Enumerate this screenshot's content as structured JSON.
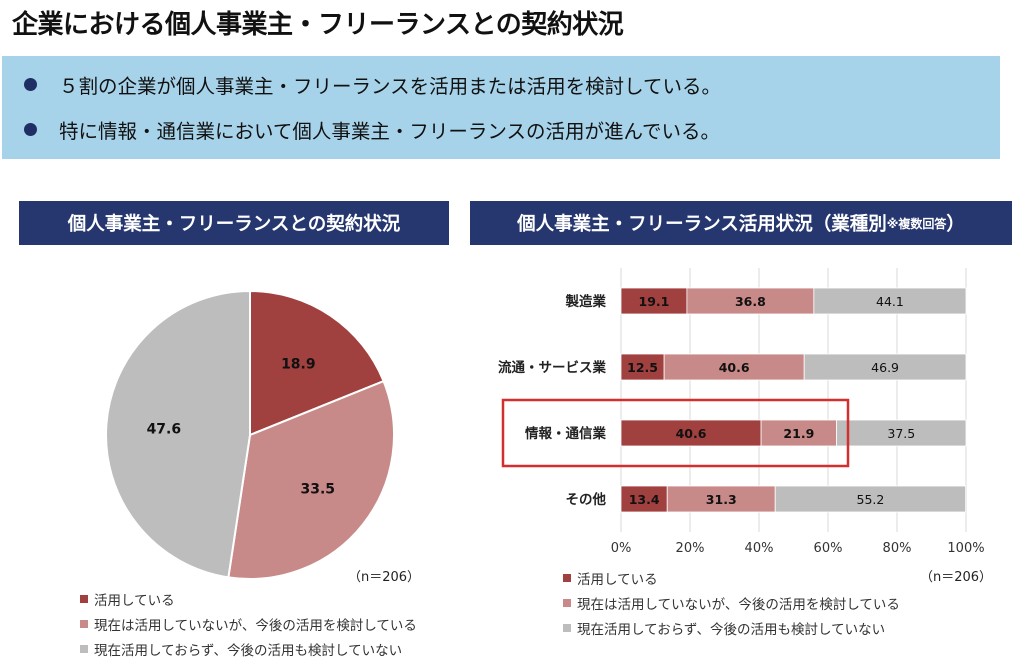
{
  "title": "企業における個人事業主・フリーランスとの契約状況",
  "summary": {
    "bullets": [
      "５割の企業が個人事業主・フリーランスを活用または活用を検討している。",
      "特に情報・通信業において個人事業主・フリーランスの活用が進んでいる。"
    ]
  },
  "left_panel": {
    "header": "個人事業主・フリーランスとの契約状況",
    "n_label": "（n＝206）"
  },
  "right_panel": {
    "header_main": "個人事業主・フリーランス活用状況（業種別",
    "header_note": "※複数回答",
    "header_close": "）",
    "n_label": "（n＝206）"
  },
  "colors": {
    "using": "#a0403f",
    "considering": "#c88a89",
    "not_using": "#bdbdbd",
    "highlight": "#d32f2f",
    "header_bg": "#263770",
    "summary_bg": "#a7d3ea"
  },
  "legend": [
    {
      "label": "活用している",
      "color": "#a0403f"
    },
    {
      "label": "現在は活用していないが、今後の活用を検討している",
      "color": "#c88a89"
    },
    {
      "label": "現在活用しておらず、今後の活用も検討していない",
      "color": "#bdbdbd"
    }
  ],
  "chart_data": [
    {
      "type": "pie",
      "title": "個人事業主・フリーランスとの契約状況",
      "labels": [
        "活用している",
        "現在は活用していないが、今後の活用を検討している",
        "現在活用しておらず、今後の活用も検討していない"
      ],
      "values": [
        18.9,
        33.5,
        47.6
      ],
      "colors": [
        "#a0403f",
        "#c88a89",
        "#bdbdbd"
      ]
    },
    {
      "type": "bar",
      "orientation": "horizontal",
      "stacked": true,
      "title": "個人事業主・フリーランス活用状況（業種別※複数回答）",
      "categories": [
        "製造業",
        "流通・サービス業",
        "情報・通信業",
        "その他"
      ],
      "series": [
        {
          "name": "活用している",
          "values": [
            19.1,
            12.5,
            40.6,
            13.4
          ],
          "color": "#a0403f"
        },
        {
          "name": "現在は活用していないが、今後の活用を検討している",
          "values": [
            36.8,
            40.6,
            21.9,
            31.3
          ],
          "color": "#c88a89"
        },
        {
          "name": "現在活用しておらず、今後の活用も検討していない",
          "values": [
            44.1,
            46.9,
            37.5,
            55.2
          ],
          "color": "#bdbdbd"
        }
      ],
      "xlim": [
        0,
        100
      ],
      "x_ticks": [
        "0%",
        "20%",
        "40%",
        "60%",
        "80%",
        "100%"
      ],
      "grid": true,
      "highlighted_category": "情報・通信業"
    }
  ]
}
